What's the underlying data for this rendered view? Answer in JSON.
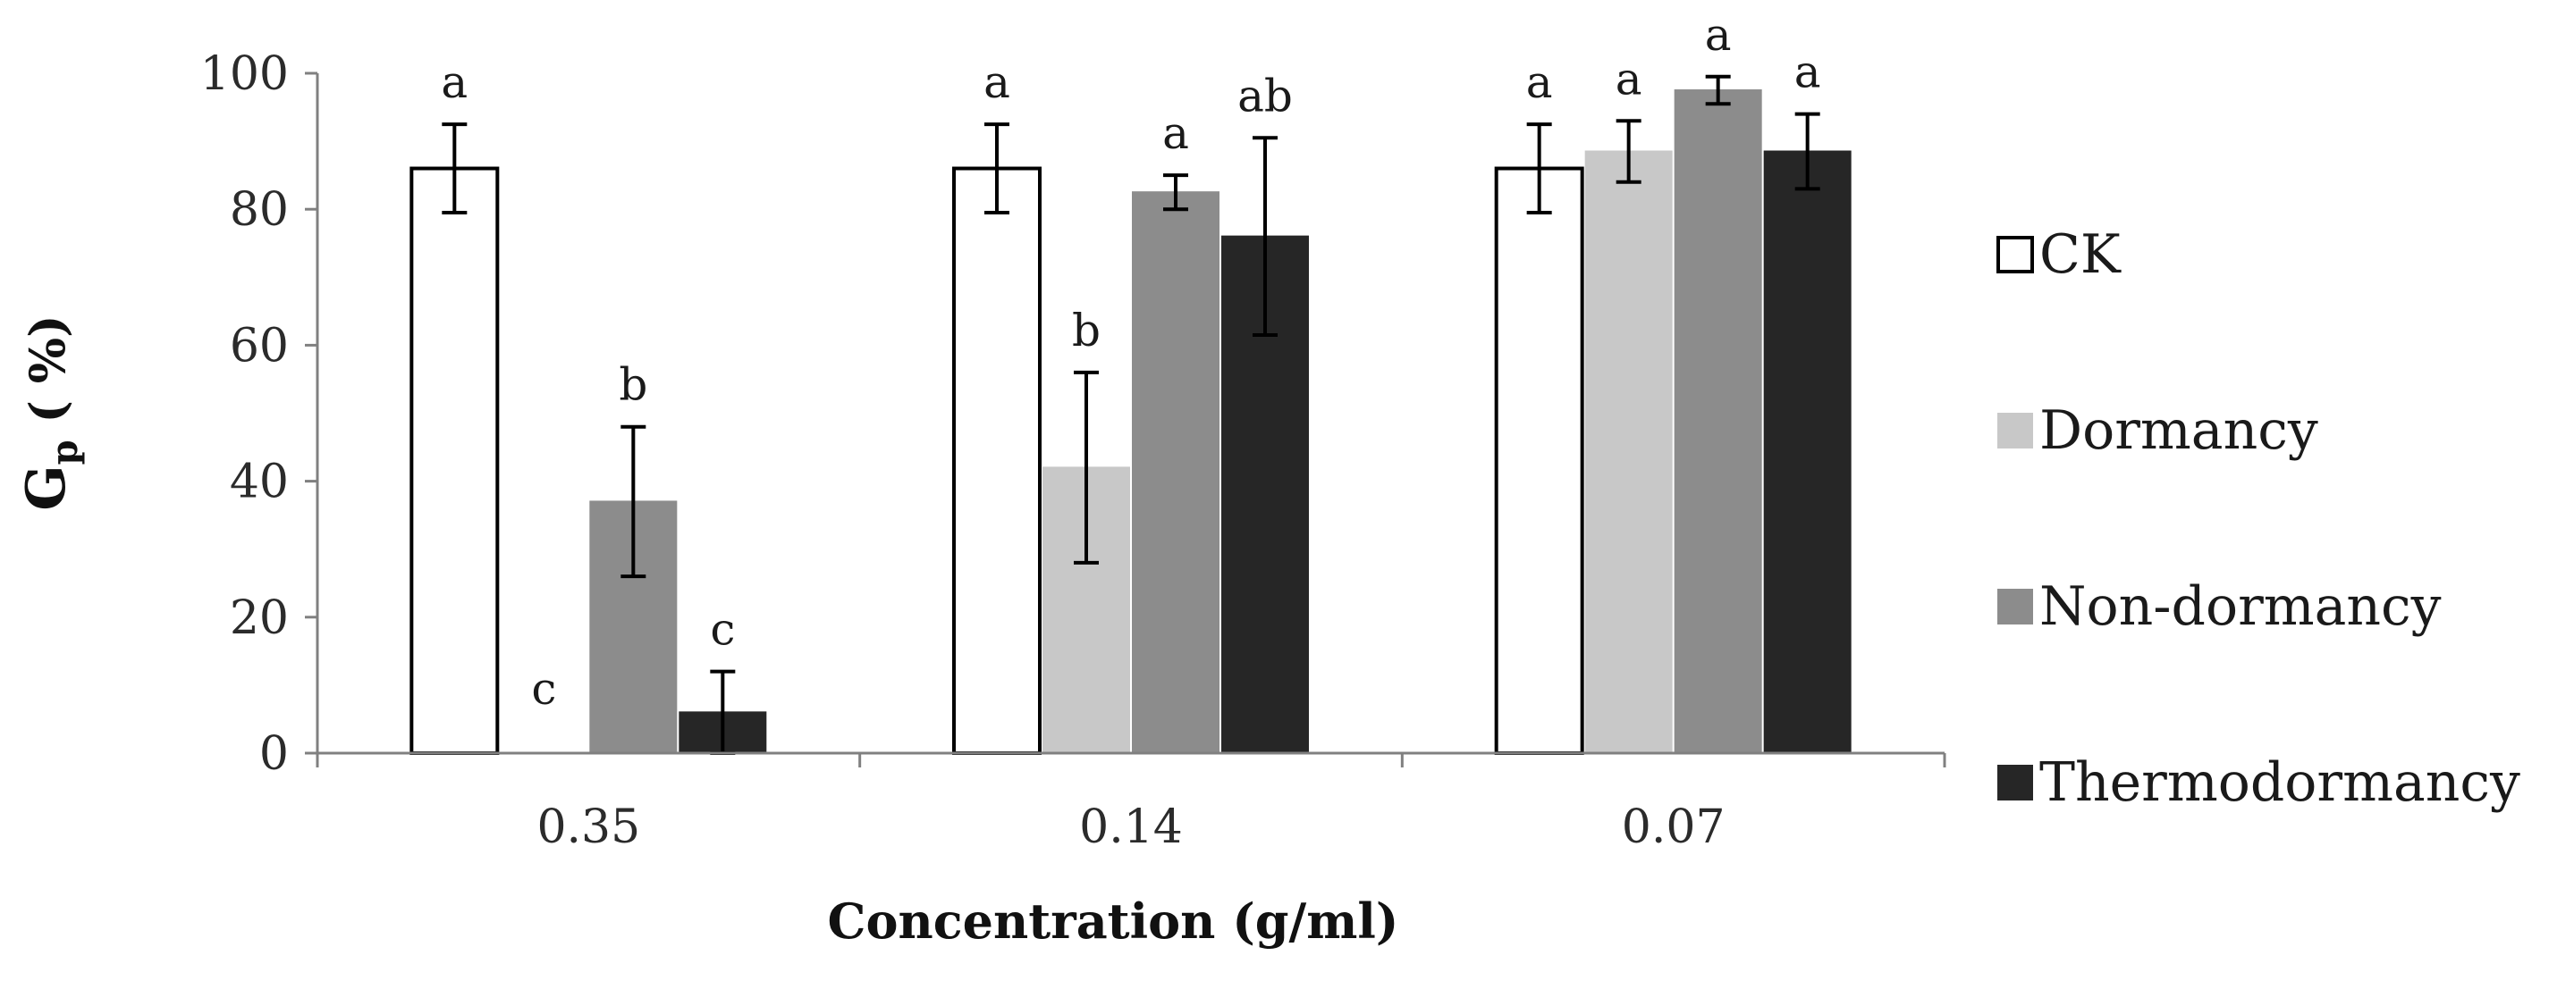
{
  "chart_data": {
    "type": "bar",
    "title": "",
    "xlabel": "Concentration (g/ml)",
    "ylabel": {
      "main": "G",
      "sub": "p",
      "unit": " ( %)"
    },
    "ylim": [
      0,
      100
    ],
    "yticks": [
      0,
      20,
      40,
      60,
      80,
      100
    ],
    "categories": [
      "0.35",
      "0.14",
      "0.07"
    ],
    "grid": false,
    "legend_position": "right",
    "series": [
      {
        "name": "CK",
        "color": "#ffffff",
        "stroke": "#000000",
        "values": [
          86,
          86,
          86
        ],
        "errors": [
          6.5,
          6.5,
          6.5
        ],
        "labels": [
          "a",
          "a",
          "a"
        ]
      },
      {
        "name": "Dormancy",
        "color": "#c8c8c8",
        "stroke": "#c8c8c8",
        "values": [
          0,
          42,
          88.5
        ],
        "errors": [
          0,
          14,
          4.5
        ],
        "labels": [
          "c",
          "b",
          "a"
        ]
      },
      {
        "name": "Non-dormancy",
        "color": "#8c8c8c",
        "stroke": "#8c8c8c",
        "values": [
          37,
          82.5,
          97.5
        ],
        "errors": [
          11,
          2.5,
          2
        ],
        "labels": [
          "b",
          "a",
          "a"
        ]
      },
      {
        "name": "Thermodormancy",
        "color": "#262626",
        "stroke": "#262626",
        "values": [
          6,
          76,
          88.5
        ],
        "errors": [
          6,
          14.5,
          5.5
        ],
        "labels": [
          "c",
          "ab",
          "a"
        ]
      }
    ]
  }
}
